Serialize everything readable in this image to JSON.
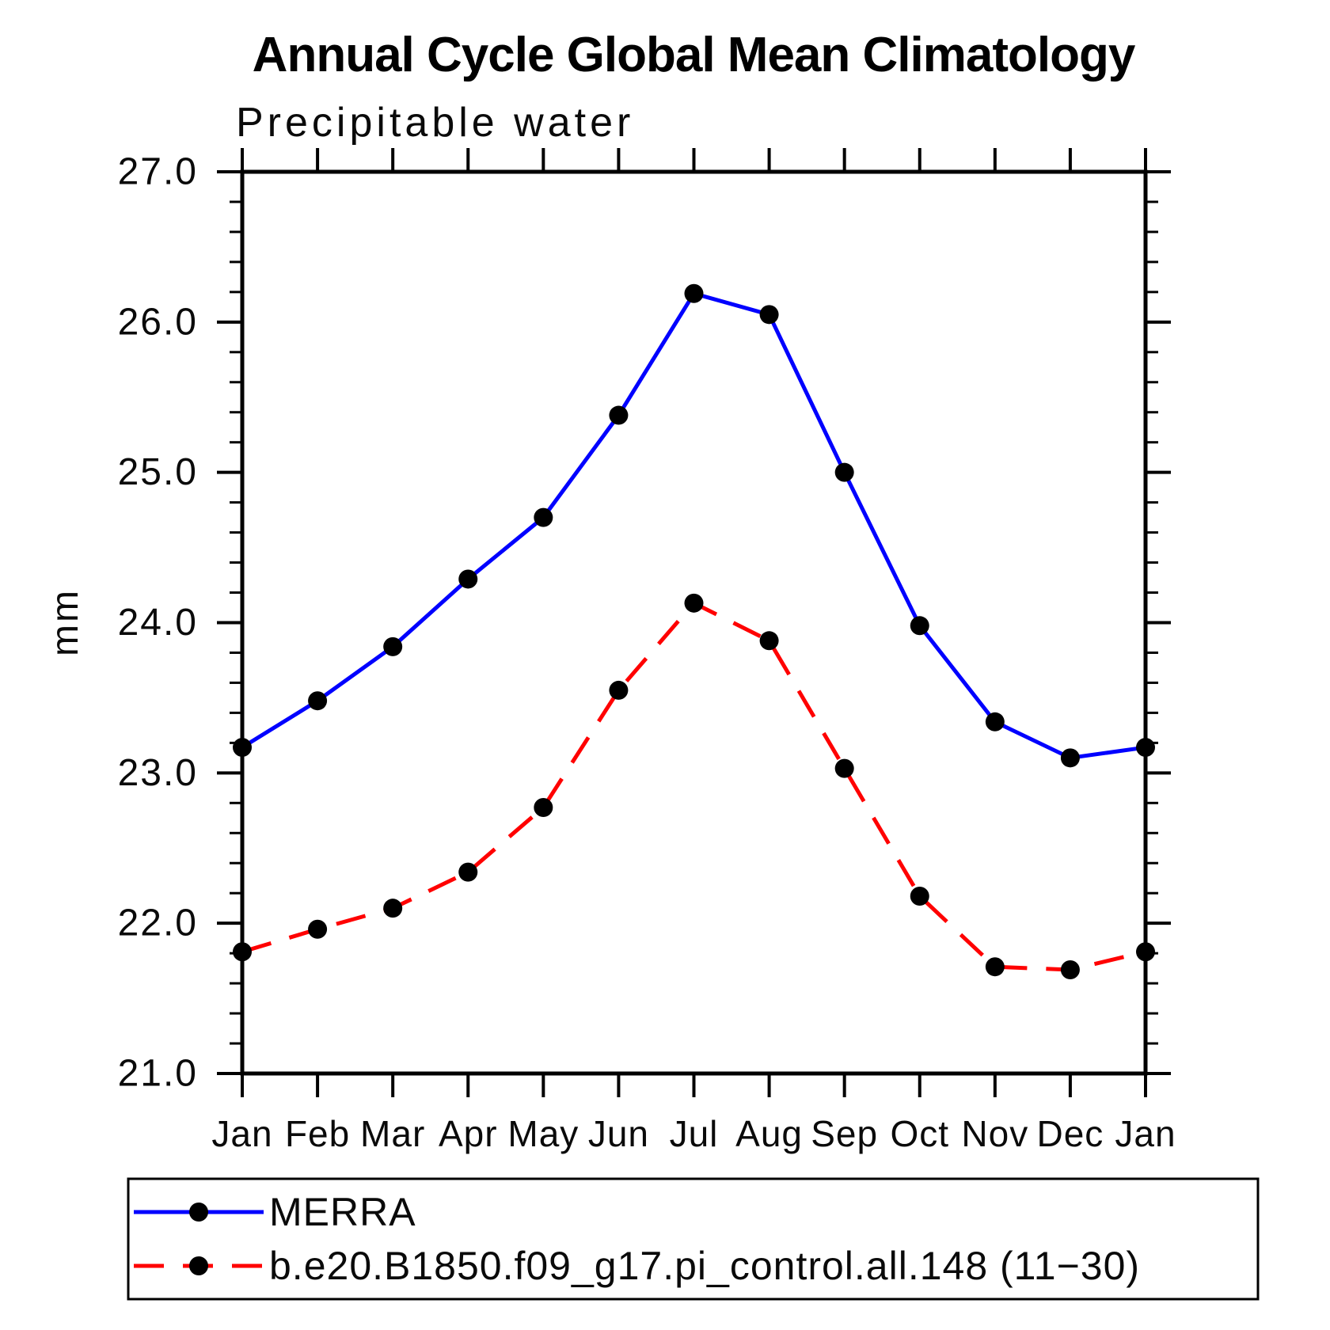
{
  "page": {
    "background": "#ffffff"
  },
  "chart_data": {
    "type": "line",
    "title": "Annual Cycle Global Mean Climatology",
    "subtitle": "Precipitable water",
    "xlabel": "",
    "ylabel": "mm",
    "categories": [
      "Jan",
      "Feb",
      "Mar",
      "Apr",
      "May",
      "Jun",
      "Jul",
      "Aug",
      "Sep",
      "Oct",
      "Nov",
      "Dec",
      "Jan"
    ],
    "ylim": [
      21.0,
      27.0
    ],
    "ytick_major_interval": 1.0,
    "ytick_minor_interval": 0.2,
    "ytick_labels": [
      "21.0",
      "22.0",
      "23.0",
      "24.0",
      "25.0",
      "26.0",
      "27.0"
    ],
    "grid": false,
    "legend_position": "bottom-left box",
    "axis_color": "#000000",
    "series": [
      {
        "name": "MERRA",
        "color": "#0000ff",
        "line_style": "solid",
        "marker": "filled-circle",
        "marker_color": "#000000",
        "values": [
          23.17,
          23.48,
          23.84,
          24.29,
          24.7,
          25.38,
          26.19,
          26.05,
          25.0,
          23.98,
          23.34,
          23.1,
          23.17
        ]
      },
      {
        "name": "b.e20.B1850.f09_g17.pi_control.all.148 (11−30)",
        "color": "#ff0000",
        "line_style": "dashed",
        "marker": "filled-circle",
        "marker_color": "#000000",
        "values": [
          21.81,
          21.96,
          22.1,
          22.34,
          22.77,
          23.55,
          24.13,
          23.88,
          23.03,
          22.18,
          21.71,
          21.69,
          21.81
        ]
      }
    ]
  }
}
